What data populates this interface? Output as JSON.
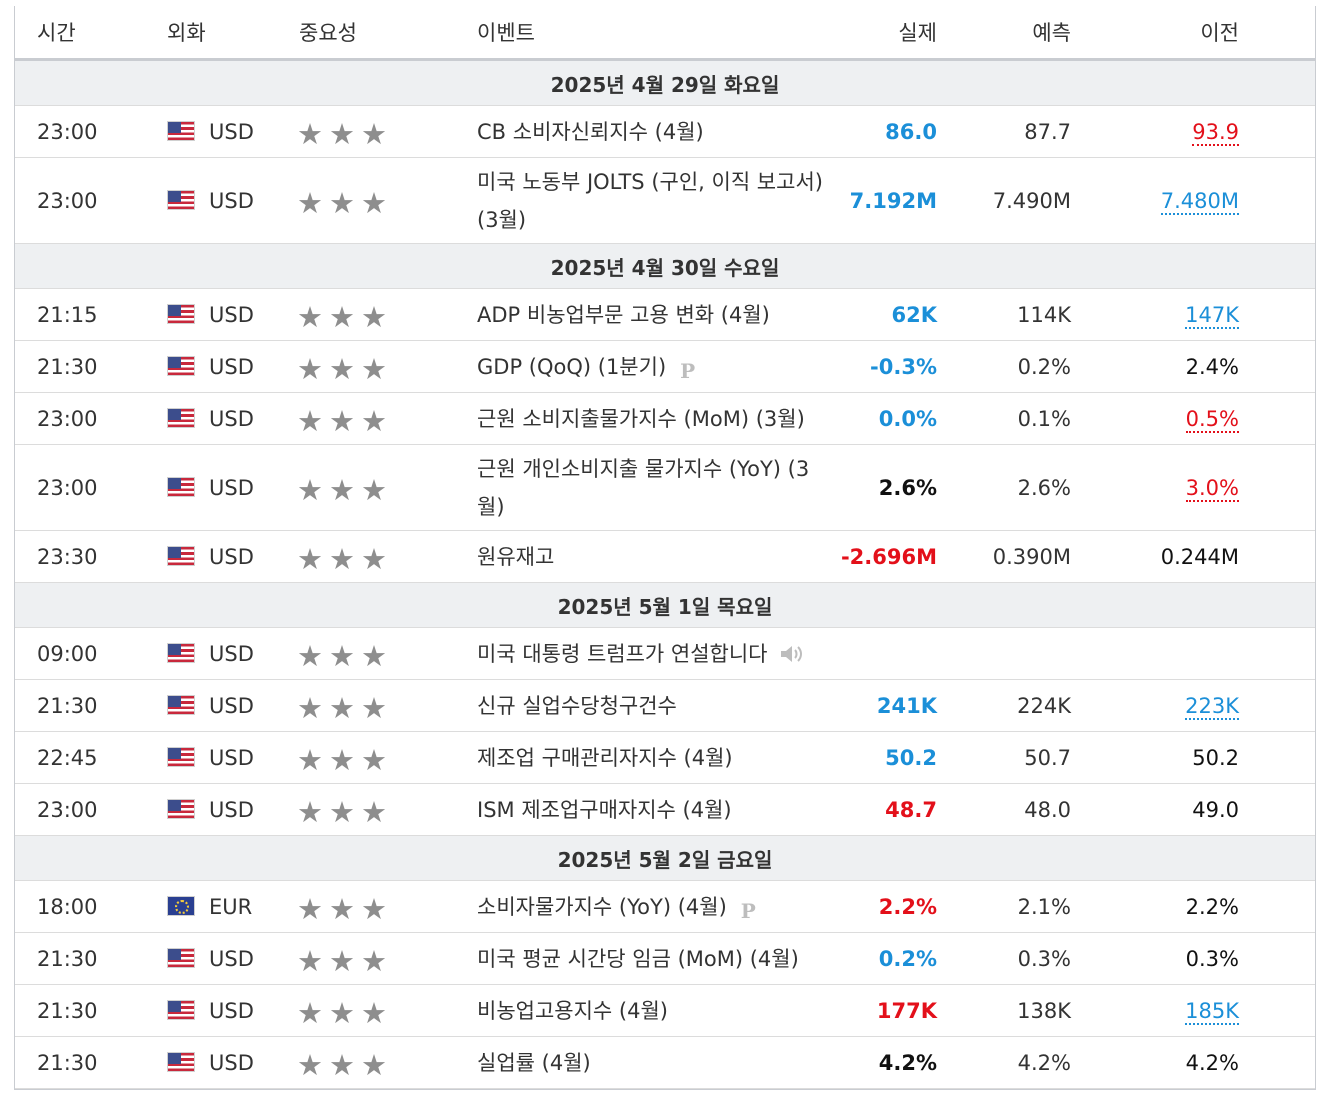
{
  "headers": {
    "time": "시간",
    "currency": "외화",
    "importance": "중요성",
    "event": "이벤트",
    "actual": "실제",
    "forecast": "예측",
    "previous": "이전"
  },
  "colors": {
    "actual_blue": "#1b8fd8",
    "actual_red": "#e3101a",
    "star_gray": "#8e8e8e",
    "date_row_bg": "#eef0f2"
  },
  "days": [
    {
      "date": "2025년 4월 29일 화요일",
      "events": [
        {
          "time": "23:00",
          "flag": "us-flag-icon",
          "currency": "USD",
          "stars": 3,
          "event": "CB 소비자신뢰지수 (4월)",
          "actual": "86.0",
          "actual_color": "blue",
          "forecast": "87.7",
          "previous": "93.9",
          "previous_style": "red"
        },
        {
          "time": "23:00",
          "flag": "us-flag-icon",
          "currency": "USD",
          "stars": 3,
          "event": "미국 노동부 JOLTS (구인, 이직 보고서) (3월)",
          "actual": "7.192M",
          "actual_color": "blue",
          "forecast": "7.490M",
          "previous": "7.480M",
          "previous_style": "blue",
          "tall": true
        }
      ]
    },
    {
      "date": "2025년 4월 30일 수요일",
      "events": [
        {
          "time": "21:15",
          "flag": "us-flag-icon",
          "currency": "USD",
          "stars": 3,
          "event": "ADP 비농업부문 고용 변화 (4월)",
          "actual": "62K",
          "actual_color": "blue",
          "forecast": "114K",
          "previous": "147K",
          "previous_style": "blue"
        },
        {
          "time": "21:30",
          "flag": "us-flag-icon",
          "currency": "USD",
          "stars": 3,
          "event": "GDP (QoQ) (1분기)",
          "icon": "preliminary-icon",
          "icon_label": "P",
          "actual": "-0.3%",
          "actual_color": "blue",
          "forecast": "0.2%",
          "previous": "2.4%",
          "previous_style": "plain"
        },
        {
          "time": "23:00",
          "flag": "us-flag-icon",
          "currency": "USD",
          "stars": 3,
          "event": "근원 소비지출물가지수 (MoM) (3월)",
          "actual": "0.0%",
          "actual_color": "blue",
          "forecast": "0.1%",
          "previous": "0.5%",
          "previous_style": "red"
        },
        {
          "time": "23:00",
          "flag": "us-flag-icon",
          "currency": "USD",
          "stars": 3,
          "event": "근원 개인소비지출 물가지수 (YoY) (3월)",
          "actual": "2.6%",
          "actual_color": "black",
          "forecast": "2.6%",
          "previous": "3.0%",
          "previous_style": "red",
          "tall": true
        },
        {
          "time": "23:30",
          "flag": "us-flag-icon",
          "currency": "USD",
          "stars": 3,
          "event": "원유재고",
          "actual": "-2.696M",
          "actual_color": "red",
          "forecast": "0.390M",
          "previous": "0.244M",
          "previous_style": "plain"
        }
      ]
    },
    {
      "date": "2025년 5월 1일 목요일",
      "events": [
        {
          "time": "09:00",
          "flag": "us-flag-icon",
          "currency": "USD",
          "stars": 3,
          "event": "미국 대통령 트럼프가 연설합니다",
          "icon": "speaker-icon",
          "actual": "",
          "actual_color": "black",
          "forecast": "",
          "previous": "",
          "previous_style": "plain"
        },
        {
          "time": "21:30",
          "flag": "us-flag-icon",
          "currency": "USD",
          "stars": 3,
          "event": "신규 실업수당청구건수",
          "actual": "241K",
          "actual_color": "blue",
          "forecast": "224K",
          "previous": "223K",
          "previous_style": "blue"
        },
        {
          "time": "22:45",
          "flag": "us-flag-icon",
          "currency": "USD",
          "stars": 3,
          "event": "제조업 구매관리자지수 (4월)",
          "actual": "50.2",
          "actual_color": "blue",
          "forecast": "50.7",
          "previous": "50.2",
          "previous_style": "plain"
        },
        {
          "time": "23:00",
          "flag": "us-flag-icon",
          "currency": "USD",
          "stars": 3,
          "event": "ISM 제조업구매자지수 (4월)",
          "actual": "48.7",
          "actual_color": "red",
          "forecast": "48.0",
          "previous": "49.0",
          "previous_style": "plain"
        }
      ]
    },
    {
      "date": "2025년 5월 2일 금요일",
      "events": [
        {
          "time": "18:00",
          "flag": "eu-flag-icon",
          "currency": "EUR",
          "stars": 3,
          "event": "소비자물가지수 (YoY) (4월)",
          "icon": "preliminary-icon",
          "icon_label": "P",
          "actual": "2.2%",
          "actual_color": "red",
          "forecast": "2.1%",
          "previous": "2.2%",
          "previous_style": "plain"
        },
        {
          "time": "21:30",
          "flag": "us-flag-icon",
          "currency": "USD",
          "stars": 3,
          "event": "미국 평균 시간당 임금 (MoM) (4월)",
          "actual": "0.2%",
          "actual_color": "blue",
          "forecast": "0.3%",
          "previous": "0.3%",
          "previous_style": "plain"
        },
        {
          "time": "21:30",
          "flag": "us-flag-icon",
          "currency": "USD",
          "stars": 3,
          "event": "비농업고용지수 (4월)",
          "actual": "177K",
          "actual_color": "red",
          "forecast": "138K",
          "previous": "185K",
          "previous_style": "blue"
        },
        {
          "time": "21:30",
          "flag": "us-flag-icon",
          "currency": "USD",
          "stars": 3,
          "event": "실업률 (4월)",
          "actual": "4.2%",
          "actual_color": "black",
          "forecast": "4.2%",
          "previous": "4.2%",
          "previous_style": "plain"
        }
      ]
    }
  ]
}
